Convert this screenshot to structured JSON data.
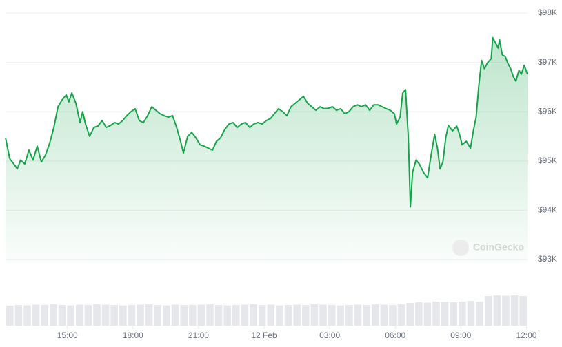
{
  "chart_data": {
    "type": "line",
    "color": "#16a34a",
    "grid": true,
    "watermark": "CoinGecko",
    "xlim": [
      12.17,
      36.05
    ],
    "xticks": [
      {
        "value": 15,
        "label": "15:00"
      },
      {
        "value": 18,
        "label": "18:00"
      },
      {
        "value": 21,
        "label": "21:00"
      },
      {
        "value": 24,
        "label": "12 Feb"
      },
      {
        "value": 27,
        "label": "03:00"
      },
      {
        "value": 30,
        "label": "06:00"
      },
      {
        "value": 33,
        "label": "09:00"
      },
      {
        "value": 36,
        "label": "12:00"
      }
    ],
    "ylim": [
      93000,
      98000
    ],
    "yticks": [
      {
        "value": 93000,
        "label": "$93K"
      },
      {
        "value": 94000,
        "label": "$94K"
      },
      {
        "value": 95000,
        "label": "$95K"
      },
      {
        "value": 96000,
        "label": "$96K"
      },
      {
        "value": 97000,
        "label": "$97K"
      },
      {
        "value": 98000,
        "label": "$98K"
      }
    ],
    "x": [
      12.17,
      12.36,
      12.55,
      12.71,
      12.86,
      13.05,
      13.24,
      13.43,
      13.62,
      13.81,
      14.0,
      14.19,
      14.38,
      14.57,
      14.76,
      14.95,
      15.07,
      15.2,
      15.39,
      15.58,
      15.7,
      15.83,
      16.02,
      16.21,
      16.4,
      16.59,
      16.78,
      16.97,
      17.16,
      17.34,
      17.53,
      17.72,
      17.91,
      18.1,
      18.29,
      18.48,
      18.67,
      18.86,
      19.05,
      19.24,
      19.43,
      19.62,
      19.81,
      20.0,
      20.18,
      20.31,
      20.5,
      20.69,
      20.88,
      21.07,
      21.26,
      21.45,
      21.64,
      21.82,
      22.01,
      22.2,
      22.39,
      22.58,
      22.77,
      22.96,
      23.15,
      23.34,
      23.53,
      23.72,
      23.91,
      24.1,
      24.29,
      24.47,
      24.66,
      24.85,
      25.04,
      25.23,
      25.42,
      25.61,
      25.8,
      25.99,
      26.18,
      26.37,
      26.56,
      26.75,
      26.94,
      27.13,
      27.31,
      27.5,
      27.69,
      27.88,
      28.07,
      28.26,
      28.45,
      28.64,
      28.83,
      29.02,
      29.21,
      29.4,
      29.59,
      29.77,
      29.96,
      30.06,
      30.22,
      30.34,
      30.47,
      30.6,
      30.69,
      30.79,
      30.95,
      31.1,
      31.29,
      31.48,
      31.64,
      31.8,
      31.93,
      32.05,
      32.18,
      32.31,
      32.43,
      32.62,
      32.81,
      32.94,
      33.06,
      33.25,
      33.44,
      33.57,
      33.7,
      33.82,
      33.95,
      34.08,
      34.2,
      34.39,
      34.46,
      34.58,
      34.71,
      34.77,
      34.9,
      35.03,
      35.15,
      35.28,
      35.41,
      35.52,
      35.66,
      35.77,
      35.9,
      36.05
    ],
    "values": [
      95470,
      95050,
      94940,
      94840,
      95020,
      94940,
      95220,
      95020,
      95300,
      94980,
      95120,
      95360,
      95680,
      96100,
      96240,
      96340,
      96200,
      96380,
      96170,
      95780,
      96000,
      95750,
      95500,
      95680,
      95710,
      95820,
      95680,
      95720,
      95780,
      95750,
      95820,
      95920,
      96000,
      96060,
      95820,
      95780,
      95920,
      96100,
      96030,
      95960,
      95920,
      95890,
      95920,
      95680,
      95400,
      95160,
      95500,
      95580,
      95470,
      95330,
      95300,
      95260,
      95220,
      95400,
      95470,
      95640,
      95750,
      95780,
      95680,
      95750,
      95780,
      95680,
      95750,
      95780,
      95750,
      95820,
      95860,
      95960,
      96060,
      96000,
      95920,
      96100,
      96170,
      96240,
      96310,
      96170,
      96100,
      96030,
      96100,
      96060,
      96070,
      96100,
      96030,
      96060,
      95960,
      96000,
      96100,
      96140,
      96100,
      96140,
      96030,
      96140,
      96140,
      96100,
      96060,
      96030,
      95960,
      95750,
      95890,
      96380,
      96450,
      95470,
      94070,
      94770,
      95020,
      94940,
      94770,
      94660,
      95120,
      95540,
      95260,
      94840,
      94980,
      95470,
      95720,
      95610,
      95710,
      95540,
      95330,
      95400,
      95260,
      95610,
      95890,
      96520,
      97040,
      96870,
      96980,
      97080,
      97500,
      97400,
      97290,
      97460,
      97150,
      97120,
      96980,
      96870,
      96700,
      96620,
      96840,
      96760,
      96940,
      96760
    ],
    "volume": {
      "color": "#e5e7eb",
      "ylim": [
        0,
        100
      ],
      "values": [
        58,
        60,
        59,
        61,
        60,
        62,
        60,
        59,
        61,
        60,
        62,
        61,
        60,
        59,
        60,
        61,
        62,
        60,
        59,
        61,
        60,
        60,
        61,
        62,
        60,
        59,
        60,
        61,
        62,
        60,
        61,
        59,
        60,
        61,
        60,
        62,
        61,
        60,
        59,
        60,
        61,
        60,
        62,
        61,
        60,
        62,
        66,
        68,
        67,
        70,
        69,
        68,
        70,
        72,
        70,
        86,
        88,
        87,
        88,
        86
      ]
    }
  }
}
